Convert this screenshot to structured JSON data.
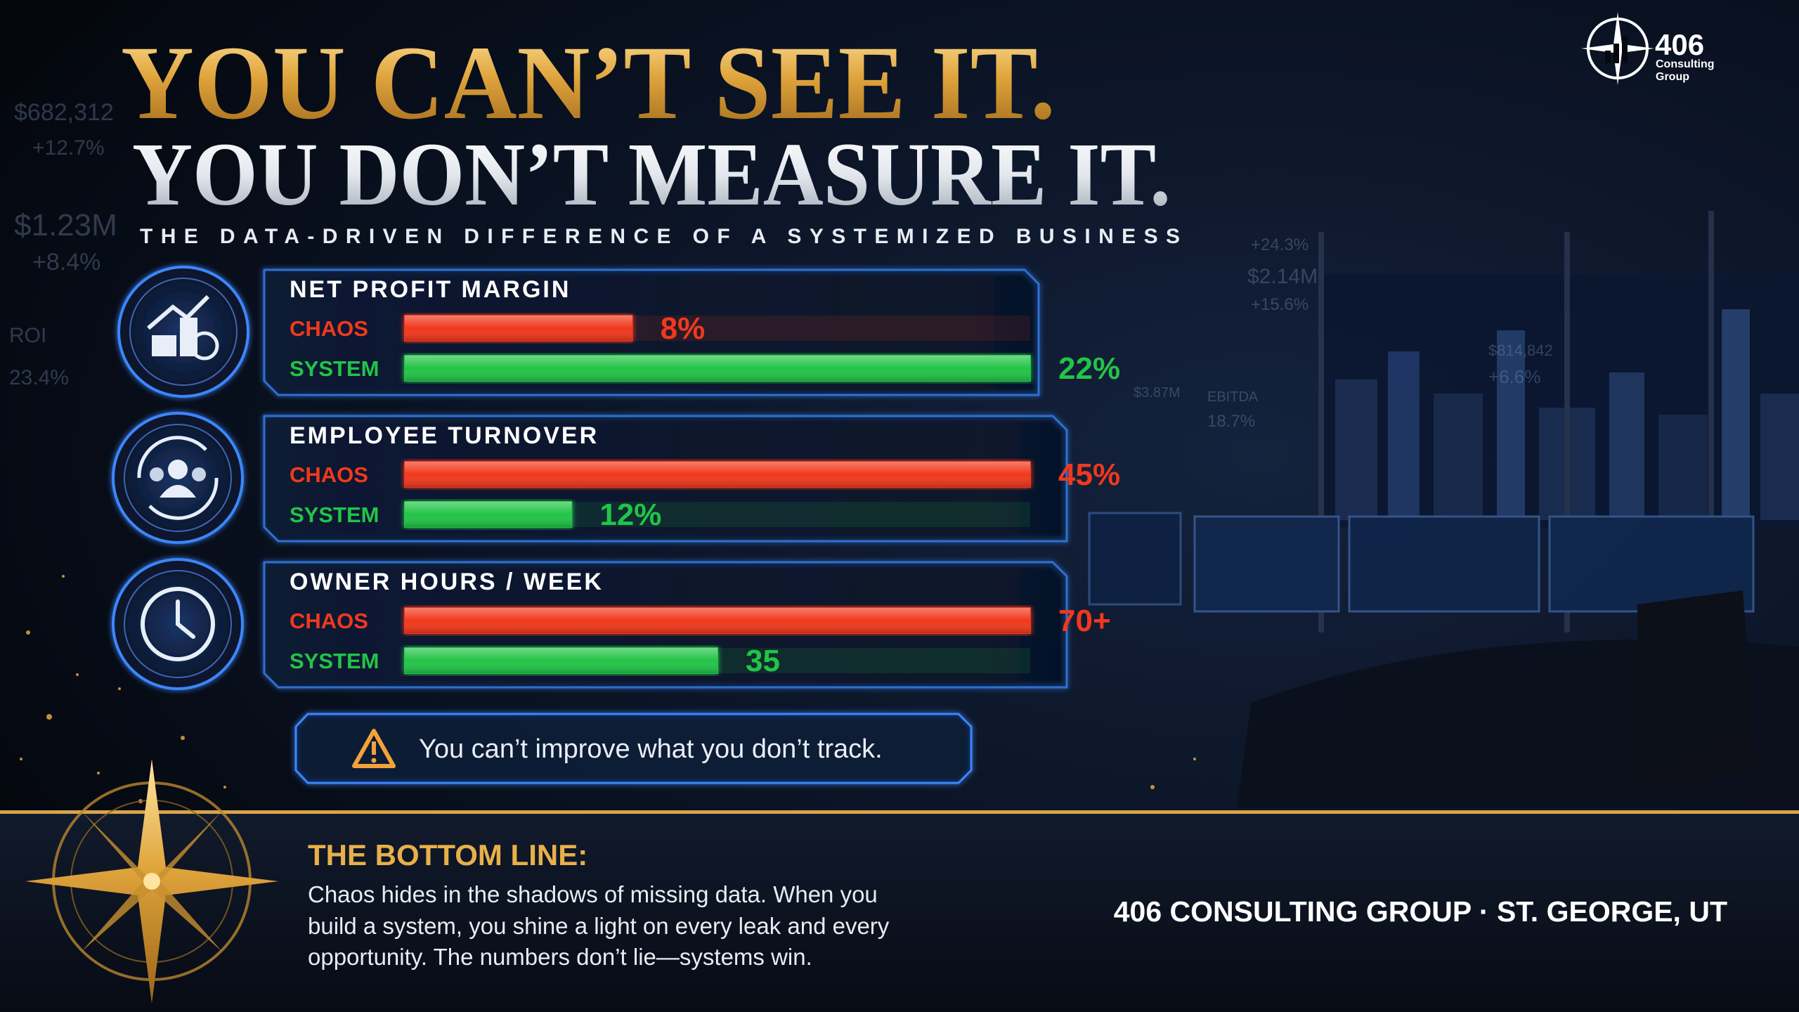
{
  "header": {
    "title_line1": "YOU CAN’T SEE IT.",
    "title_line2": "YOU DON’T MEASURE IT.",
    "subtitle": "THE DATA-DRIVEN DIFFERENCE OF A SYSTEMIZED BUSINESS"
  },
  "logo": {
    "number": "406",
    "line1": "Consulting",
    "line2": "Group"
  },
  "background_labels": [
    "$682,312",
    "+12.7%",
    "$1.23M",
    "+8.4%",
    "ROI",
    "23.4%",
    "+24.3%",
    "$2.14M",
    "+15.6%",
    "$814,842",
    "+6.6%",
    "$3.87M",
    "EBITDA",
    "18.7%"
  ],
  "chart_data": [
    {
      "type": "bar",
      "orientation": "horizontal",
      "title": "NET PROFIT MARGIN",
      "categories": [
        "CHAOS",
        "SYSTEM"
      ],
      "values": [
        8,
        22
      ],
      "value_labels": [
        "8%",
        "22%"
      ],
      "colors": [
        "#f0391c",
        "#22c447"
      ]
    },
    {
      "type": "bar",
      "orientation": "horizontal",
      "title": "EMPLOYEE TURNOVER",
      "categories": [
        "CHAOS",
        "SYSTEM"
      ],
      "values": [
        45,
        12
      ],
      "value_labels": [
        "45%",
        "12%"
      ],
      "colors": [
        "#f0391c",
        "#22c447"
      ]
    },
    {
      "type": "bar",
      "orientation": "horizontal",
      "title": "OWNER HOURS / WEEK",
      "categories": [
        "CHAOS",
        "SYSTEM"
      ],
      "values": [
        70,
        35
      ],
      "value_labels": [
        "70+",
        "35"
      ],
      "colors": [
        "#f0391c",
        "#22c447"
      ]
    }
  ],
  "callout": "You can’t improve what you don’t track.",
  "bottom_line": {
    "heading": "THE BOTTOM LINE:",
    "lines": [
      "Chaos hides in the shadows of missing data. When you",
      "build a system, you shine a light on every leak and every",
      "opportunity. The numbers don’t lie—systems win."
    ]
  },
  "footer": "406 CONSULTING GROUP · ST. GEORGE, UT"
}
